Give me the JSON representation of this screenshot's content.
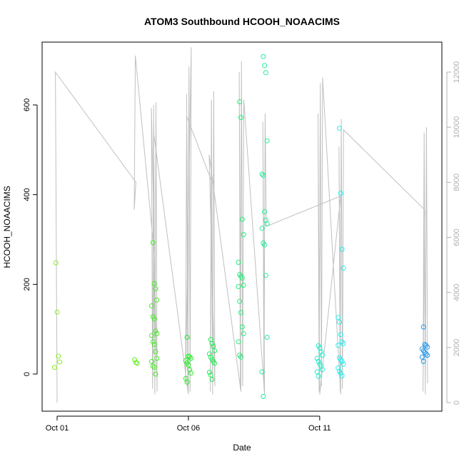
{
  "chart_data": {
    "type": "scatter",
    "title": "ATOM3 Southbound HCOOH_NOAACIMS",
    "xlabel": "Date",
    "ylabel": "HCOOH_NOAACIMS",
    "x_axis": {
      "type": "date",
      "range": [
        "2017-10-01",
        "2017-10-15"
      ],
      "ticks": [
        "Oct 01",
        "Oct 06",
        "Oct 11"
      ],
      "tick_dates": [
        "2017-10-01",
        "2017-10-06",
        "2017-10-11"
      ]
    },
    "y_axis_left": {
      "range": [
        -80,
        720
      ],
      "ticks": [
        0,
        200,
        400,
        600
      ]
    },
    "y_axis_right": {
      "label": "",
      "range": [
        -200,
        12700
      ],
      "ticks": [
        0,
        2000,
        4000,
        6000,
        8000,
        10000,
        12000
      ],
      "color": "#b0b0b0"
    },
    "grid": false,
    "legend": "none",
    "series": [
      {
        "kind": "points",
        "marker": "open-circle",
        "color_scale": "by date: yellow-green to blue",
        "points": [
          {
            "x": "2017-10-01",
            "y": 248,
            "c": "#88ee22"
          },
          {
            "x": "2017-10-01",
            "y": 138,
            "c": "#88ee22"
          },
          {
            "x": "2017-10-01",
            "y": 40,
            "c": "#88ee22"
          },
          {
            "x": "2017-10-01",
            "y": 27,
            "c": "#88ee22"
          },
          {
            "x": "2017-10-01",
            "y": 15,
            "c": "#88ee22"
          },
          {
            "x": "2017-10-04",
            "y": 32,
            "c": "#66ee22"
          },
          {
            "x": "2017-10-04",
            "y": 26,
            "c": "#66ee22"
          },
          {
            "x": "2017-10-04",
            "y": 24,
            "c": "#66ee22"
          },
          {
            "x": "2017-10-04.7",
            "y": 293,
            "c": "#44ee22"
          },
          {
            "x": "2017-10-04.7",
            "y": 202,
            "c": "#44ee22"
          },
          {
            "x": "2017-10-04.7",
            "y": 190,
            "c": "#44ee22"
          },
          {
            "x": "2017-10-04.7",
            "y": 165,
            "c": "#44ee22"
          },
          {
            "x": "2017-10-04.7",
            "y": 152,
            "c": "#44ee22"
          },
          {
            "x": "2017-10-04.7",
            "y": 128,
            "c": "#44ee22"
          },
          {
            "x": "2017-10-04.7",
            "y": 123,
            "c": "#44ee22"
          },
          {
            "x": "2017-10-04.7",
            "y": 96,
            "c": "#44ee22"
          },
          {
            "x": "2017-10-04.7",
            "y": 90,
            "c": "#44ee22"
          },
          {
            "x": "2017-10-04.7",
            "y": 86,
            "c": "#44ee22"
          },
          {
            "x": "2017-10-04.7",
            "y": 72,
            "c": "#44ee22"
          },
          {
            "x": "2017-10-04.7",
            "y": 66,
            "c": "#44ee22"
          },
          {
            "x": "2017-10-04.7",
            "y": 50,
            "c": "#44ee22"
          },
          {
            "x": "2017-10-04.7",
            "y": 35,
            "c": "#44ee22"
          },
          {
            "x": "2017-10-04.7",
            "y": 28,
            "c": "#44ee22"
          },
          {
            "x": "2017-10-04.7",
            "y": 18,
            "c": "#44ee22"
          },
          {
            "x": "2017-10-04.7",
            "y": 15,
            "c": "#44ee22"
          },
          {
            "x": "2017-10-04.7",
            "y": 0,
            "c": "#44ee22"
          },
          {
            "x": "2017-10-06",
            "y": 82,
            "c": "#22ee22"
          },
          {
            "x": "2017-10-06",
            "y": 40,
            "c": "#22ee22"
          },
          {
            "x": "2017-10-06",
            "y": 38,
            "c": "#22ee22"
          },
          {
            "x": "2017-10-06",
            "y": 35,
            "c": "#22ee22"
          },
          {
            "x": "2017-10-06",
            "y": 30,
            "c": "#22ee22"
          },
          {
            "x": "2017-10-06",
            "y": 25,
            "c": "#22ee22"
          },
          {
            "x": "2017-10-06",
            "y": 20,
            "c": "#22ee22"
          },
          {
            "x": "2017-10-06",
            "y": 10,
            "c": "#22ee22"
          },
          {
            "x": "2017-10-06",
            "y": 2,
            "c": "#22ee22"
          },
          {
            "x": "2017-10-06",
            "y": -10,
            "c": "#22ee22"
          },
          {
            "x": "2017-10-06",
            "y": -18,
            "c": "#22ee22"
          },
          {
            "x": "2017-10-06.9",
            "y": 77,
            "c": "#22ee55"
          },
          {
            "x": "2017-10-06.9",
            "y": 68,
            "c": "#22ee55"
          },
          {
            "x": "2017-10-06.9",
            "y": 62,
            "c": "#22ee55"
          },
          {
            "x": "2017-10-06.9",
            "y": 52,
            "c": "#22ee55"
          },
          {
            "x": "2017-10-06.9",
            "y": 45,
            "c": "#22ee55"
          },
          {
            "x": "2017-10-06.9",
            "y": 38,
            "c": "#22ee55"
          },
          {
            "x": "2017-10-06.9",
            "y": 33,
            "c": "#22ee55"
          },
          {
            "x": "2017-10-06.9",
            "y": 28,
            "c": "#22ee55"
          },
          {
            "x": "2017-10-06.9",
            "y": 24,
            "c": "#22ee55"
          },
          {
            "x": "2017-10-06.9",
            "y": 4,
            "c": "#22ee55"
          },
          {
            "x": "2017-10-06.9",
            "y": -2,
            "c": "#22ee55"
          },
          {
            "x": "2017-10-06.9",
            "y": -12,
            "c": "#22ee55"
          },
          {
            "x": "2017-10-08",
            "y": 607,
            "c": "#22ee77"
          },
          {
            "x": "2017-10-08",
            "y": 572,
            "c": "#22ee77"
          },
          {
            "x": "2017-10-08",
            "y": 345,
            "c": "#22ee77"
          },
          {
            "x": "2017-10-08",
            "y": 311,
            "c": "#22ee77"
          },
          {
            "x": "2017-10-08",
            "y": 249,
            "c": "#22ee77"
          },
          {
            "x": "2017-10-08",
            "y": 222,
            "c": "#22ee77"
          },
          {
            "x": "2017-10-08",
            "y": 218,
            "c": "#22ee77"
          },
          {
            "x": "2017-10-08",
            "y": 214,
            "c": "#22ee77"
          },
          {
            "x": "2017-10-08",
            "y": 198,
            "c": "#22ee77"
          },
          {
            "x": "2017-10-08",
            "y": 195,
            "c": "#22ee77"
          },
          {
            "x": "2017-10-08",
            "y": 162,
            "c": "#22ee77"
          },
          {
            "x": "2017-10-08",
            "y": 137,
            "c": "#22ee77"
          },
          {
            "x": "2017-10-08",
            "y": 105,
            "c": "#22ee77"
          },
          {
            "x": "2017-10-08",
            "y": 90,
            "c": "#22ee77"
          },
          {
            "x": "2017-10-08",
            "y": 72,
            "c": "#22ee77"
          },
          {
            "x": "2017-10-08",
            "y": 42,
            "c": "#22ee77"
          },
          {
            "x": "2017-10-08",
            "y": 38,
            "c": "#22ee77"
          },
          {
            "x": "2017-10-08.9",
            "y": 708,
            "c": "#22ee99"
          },
          {
            "x": "2017-10-08.9",
            "y": 688,
            "c": "#22ee99"
          },
          {
            "x": "2017-10-08.9",
            "y": 672,
            "c": "#22ee99"
          },
          {
            "x": "2017-10-08.9",
            "y": 520,
            "c": "#22ee99"
          },
          {
            "x": "2017-10-08.9",
            "y": 446,
            "c": "#22ee99"
          },
          {
            "x": "2017-10-08.9",
            "y": 443,
            "c": "#22ee99"
          },
          {
            "x": "2017-10-08.9",
            "y": 362,
            "c": "#22ee99"
          },
          {
            "x": "2017-10-08.9",
            "y": 343,
            "c": "#22ee99"
          },
          {
            "x": "2017-10-08.9",
            "y": 335,
            "c": "#22ee99"
          },
          {
            "x": "2017-10-08.9",
            "y": 325,
            "c": "#22ee99"
          },
          {
            "x": "2017-10-08.9",
            "y": 292,
            "c": "#22ee99"
          },
          {
            "x": "2017-10-08.9",
            "y": 288,
            "c": "#22ee99"
          },
          {
            "x": "2017-10-08.9",
            "y": 220,
            "c": "#22ee99"
          },
          {
            "x": "2017-10-08.9",
            "y": 82,
            "c": "#22ee99"
          },
          {
            "x": "2017-10-08.9",
            "y": 5,
            "c": "#22ee99"
          },
          {
            "x": "2017-10-08.9",
            "y": -50,
            "c": "#22ee99"
          },
          {
            "x": "2017-10-11",
            "y": 63,
            "c": "#22eecc"
          },
          {
            "x": "2017-10-11",
            "y": 58,
            "c": "#22eecc"
          },
          {
            "x": "2017-10-11",
            "y": 50,
            "c": "#22eecc"
          },
          {
            "x": "2017-10-11",
            "y": 42,
            "c": "#22eecc"
          },
          {
            "x": "2017-10-11",
            "y": 35,
            "c": "#22eecc"
          },
          {
            "x": "2017-10-11",
            "y": 28,
            "c": "#22eecc"
          },
          {
            "x": "2017-10-11",
            "y": 22,
            "c": "#22eecc"
          },
          {
            "x": "2017-10-11",
            "y": 18,
            "c": "#22eecc"
          },
          {
            "x": "2017-10-11",
            "y": 10,
            "c": "#22eecc"
          },
          {
            "x": "2017-10-11",
            "y": 5,
            "c": "#22eecc"
          },
          {
            "x": "2017-10-11",
            "y": -5,
            "c": "#22eecc"
          },
          {
            "x": "2017-10-11.8",
            "y": 548,
            "c": "#22eeee"
          },
          {
            "x": "2017-10-11.8",
            "y": 403,
            "c": "#22eeee"
          },
          {
            "x": "2017-10-11.8",
            "y": 278,
            "c": "#22eeee"
          },
          {
            "x": "2017-10-11.8",
            "y": 236,
            "c": "#22eeee"
          },
          {
            "x": "2017-10-11.8",
            "y": 126,
            "c": "#22eeee"
          },
          {
            "x": "2017-10-11.8",
            "y": 116,
            "c": "#22eeee"
          },
          {
            "x": "2017-10-11.8",
            "y": 88,
            "c": "#22eeee"
          },
          {
            "x": "2017-10-11.8",
            "y": 72,
            "c": "#22eeee"
          },
          {
            "x": "2017-10-11.8",
            "y": 68,
            "c": "#22eeee"
          },
          {
            "x": "2017-10-11.8",
            "y": 64,
            "c": "#22eeee"
          },
          {
            "x": "2017-10-11.8",
            "y": 36,
            "c": "#22eeee"
          },
          {
            "x": "2017-10-11.8",
            "y": 32,
            "c": "#22eeee"
          },
          {
            "x": "2017-10-11.8",
            "y": 28,
            "c": "#22eeee"
          },
          {
            "x": "2017-10-11.8",
            "y": 22,
            "c": "#22eeee"
          },
          {
            "x": "2017-10-11.8",
            "y": 14,
            "c": "#22eeee"
          },
          {
            "x": "2017-10-11.8",
            "y": 6,
            "c": "#22eeee"
          },
          {
            "x": "2017-10-11.8",
            "y": 2,
            "c": "#22eeee"
          },
          {
            "x": "2017-10-11.8",
            "y": -4,
            "c": "#22eeee"
          },
          {
            "x": "2017-10-15",
            "y": 105,
            "c": "#2299ee"
          },
          {
            "x": "2017-10-15",
            "y": 66,
            "c": "#2299ee"
          },
          {
            "x": "2017-10-15",
            "y": 64,
            "c": "#2299ee"
          },
          {
            "x": "2017-10-15",
            "y": 60,
            "c": "#2299ee"
          },
          {
            "x": "2017-10-15",
            "y": 56,
            "c": "#2299ee"
          },
          {
            "x": "2017-10-15",
            "y": 52,
            "c": "#2299ee"
          },
          {
            "x": "2017-10-15",
            "y": 48,
            "c": "#2299ee"
          },
          {
            "x": "2017-10-15",
            "y": 45,
            "c": "#2299ee"
          },
          {
            "x": "2017-10-15",
            "y": 42,
            "c": "#2299ee"
          },
          {
            "x": "2017-10-15",
            "y": 38,
            "c": "#2299ee"
          },
          {
            "x": "2017-10-15",
            "y": 28,
            "c": "#2299ee"
          }
        ]
      },
      {
        "kind": "line",
        "axis": "right",
        "color": "#c0c0c0",
        "description_of_trace": "altitude-like secondary trace",
        "points": [
          {
            "x": "2017-10-01",
            "y": 0
          },
          {
            "x": "2017-10-01",
            "y": 12000
          },
          {
            "x": "2017-10-04",
            "y": 8000
          },
          {
            "x": "2017-10-04",
            "y": 7000
          },
          {
            "x": "2017-10-04",
            "y": 12600
          },
          {
            "x": "2017-10-04.7",
            "y": 5400
          },
          {
            "x": "2017-10-04.7",
            "y": 500
          },
          {
            "x": "2017-10-04.7",
            "y": 10800
          },
          {
            "x": "2017-10-04.7",
            "y": 300
          },
          {
            "x": "2017-10-04.7",
            "y": 10900
          },
          {
            "x": "2017-10-04.7",
            "y": 400
          },
          {
            "x": "2017-10-04.7",
            "y": 10700
          },
          {
            "x": "2017-10-04.7",
            "y": 600
          },
          {
            "x": "2017-10-04.7",
            "y": 9800
          },
          {
            "x": "2017-10-06",
            "y": 300
          },
          {
            "x": "2017-10-06",
            "y": 11200
          },
          {
            "x": "2017-10-06",
            "y": 500
          },
          {
            "x": "2017-10-06",
            "y": 12200
          },
          {
            "x": "2017-10-06",
            "y": 400
          },
          {
            "x": "2017-10-06",
            "y": 12900
          },
          {
            "x": "2017-10-06",
            "y": 700
          },
          {
            "x": "2017-10-06",
            "y": 10400
          },
          {
            "x": "2017-10-06.9",
            "y": 8000
          },
          {
            "x": "2017-10-06.9",
            "y": 400
          },
          {
            "x": "2017-10-06.9",
            "y": 11000
          },
          {
            "x": "2017-10-06.9",
            "y": 300
          },
          {
            "x": "2017-10-06.9",
            "y": 11300
          },
          {
            "x": "2017-10-06.9",
            "y": 600
          },
          {
            "x": "2017-10-06.9",
            "y": 9000
          },
          {
            "x": "2017-10-08",
            "y": 400
          },
          {
            "x": "2017-10-08",
            "y": 12000
          },
          {
            "x": "2017-10-08",
            "y": 500
          },
          {
            "x": "2017-10-08",
            "y": 12400
          },
          {
            "x": "2017-10-08",
            "y": 600
          },
          {
            "x": "2017-10-08",
            "y": 11000
          },
          {
            "x": "2017-10-08.9",
            "y": 300
          },
          {
            "x": "2017-10-08.9",
            "y": 10200
          },
          {
            "x": "2017-10-08.9",
            "y": 500
          },
          {
            "x": "2017-10-08.9",
            "y": 10500
          },
          {
            "x": "2017-10-08.9",
            "y": 6400
          },
          {
            "x": "2017-10-11.8",
            "y": 7500
          },
          {
            "x": "2017-10-11",
            "y": 300
          },
          {
            "x": "2017-10-11",
            "y": 10500
          },
          {
            "x": "2017-10-11",
            "y": 400
          },
          {
            "x": "2017-10-11",
            "y": 11600
          },
          {
            "x": "2017-10-11",
            "y": 600
          },
          {
            "x": "2017-10-11",
            "y": 11800
          },
          {
            "x": "2017-10-11.8",
            "y": 300
          },
          {
            "x": "2017-10-11.8",
            "y": 9300
          },
          {
            "x": "2017-10-11.8",
            "y": 400
          },
          {
            "x": "2017-10-11.8",
            "y": 10300
          },
          {
            "x": "2017-10-11.8",
            "y": 500
          },
          {
            "x": "2017-10-11.8",
            "y": 9900
          },
          {
            "x": "2017-10-15",
            "y": 7000
          },
          {
            "x": "2017-10-15",
            "y": 400
          },
          {
            "x": "2017-10-15",
            "y": 9800
          },
          {
            "x": "2017-10-15",
            "y": 300
          },
          {
            "x": "2017-10-15",
            "y": 10000
          },
          {
            "x": "2017-10-15",
            "y": 700
          }
        ]
      }
    ]
  }
}
